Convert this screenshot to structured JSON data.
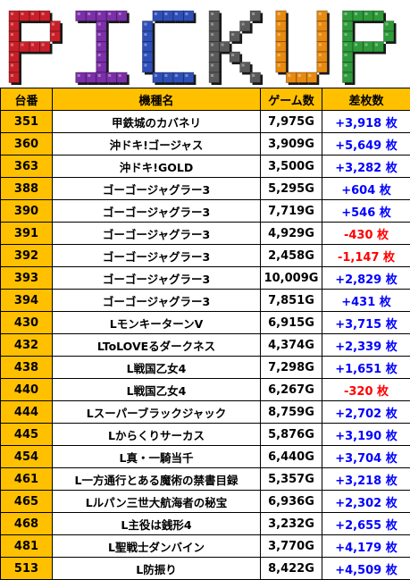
{
  "logo": {
    "text": "PICKUP",
    "letters": [
      "P",
      "I",
      "C",
      "K",
      "U",
      "P"
    ],
    "colors": [
      "#c8202a",
      "#7b2fa8",
      "#2f4fb8",
      "#5a5a5a",
      "#e88a10",
      "#8a5a2a",
      "#2e9a3a"
    ]
  },
  "headers": {
    "no": "台番",
    "name": "機種名",
    "games": "ゲーム数",
    "diff": "差枚数"
  },
  "colors": {
    "header_bg": "#ffc000",
    "positive": "#0000ff",
    "negative": "#ff0000"
  },
  "rows": [
    {
      "no": "351",
      "name": "甲鉄城のカバネリ",
      "games": "7,975G",
      "diff": "+3,918 枚",
      "sign": "pos"
    },
    {
      "no": "360",
      "name": "沖ドキ!ゴージャス",
      "games": "3,909G",
      "diff": "+5,649 枚",
      "sign": "pos"
    },
    {
      "no": "363",
      "name": "沖ドキ!GOLD",
      "games": "3,500G",
      "diff": "+3,282 枚",
      "sign": "pos"
    },
    {
      "no": "388",
      "name": "ゴーゴージャグラー3",
      "games": "5,295G",
      "diff": "+604 枚",
      "sign": "pos"
    },
    {
      "no": "390",
      "name": "ゴーゴージャグラー3",
      "games": "7,719G",
      "diff": "+546 枚",
      "sign": "pos"
    },
    {
      "no": "391",
      "name": "ゴーゴージャグラー3",
      "games": "4,929G",
      "diff": "-430 枚",
      "sign": "neg"
    },
    {
      "no": "392",
      "name": "ゴーゴージャグラー3",
      "games": "2,458G",
      "diff": "-1,147 枚",
      "sign": "neg"
    },
    {
      "no": "393",
      "name": "ゴーゴージャグラー3",
      "games": "10,009G",
      "diff": "+2,829 枚",
      "sign": "pos"
    },
    {
      "no": "394",
      "name": "ゴーゴージャグラー3",
      "games": "7,851G",
      "diff": "+431 枚",
      "sign": "pos"
    },
    {
      "no": "430",
      "name": "LモンキーターンV",
      "games": "6,915G",
      "diff": "+3,715 枚",
      "sign": "pos"
    },
    {
      "no": "432",
      "name": "LToLOVEるダークネス",
      "games": "4,374G",
      "diff": "+2,339 枚",
      "sign": "pos"
    },
    {
      "no": "438",
      "name": "L戦国乙女4",
      "games": "7,298G",
      "diff": "+1,651 枚",
      "sign": "pos"
    },
    {
      "no": "440",
      "name": "L戦国乙女4",
      "games": "6,267G",
      "diff": "-320 枚",
      "sign": "neg"
    },
    {
      "no": "444",
      "name": "Lスーパーブラックジャック",
      "games": "8,759G",
      "diff": "+2,702 枚",
      "sign": "pos"
    },
    {
      "no": "445",
      "name": "Lからくりサーカス",
      "games": "5,876G",
      "diff": "+3,190 枚",
      "sign": "pos"
    },
    {
      "no": "454",
      "name": "L真・一騎当千",
      "games": "6,440G",
      "diff": "+3,704 枚",
      "sign": "pos"
    },
    {
      "no": "461",
      "name": "L一方通行とある魔術の禁書目録",
      "games": "5,357G",
      "diff": "+3,218 枚",
      "sign": "pos"
    },
    {
      "no": "465",
      "name": "Lルパン三世大航海者の秘宝",
      "games": "6,936G",
      "diff": "+2,302 枚",
      "sign": "pos"
    },
    {
      "no": "468",
      "name": "L主役は銭形4",
      "games": "3,232G",
      "diff": "+2,655 枚",
      "sign": "pos"
    },
    {
      "no": "481",
      "name": "L聖戦士ダンバイン",
      "games": "3,770G",
      "diff": "+4,179 枚",
      "sign": "pos"
    },
    {
      "no": "513",
      "name": "L防振り",
      "games": "8,422G",
      "diff": "+4,509 枚",
      "sign": "pos"
    }
  ]
}
